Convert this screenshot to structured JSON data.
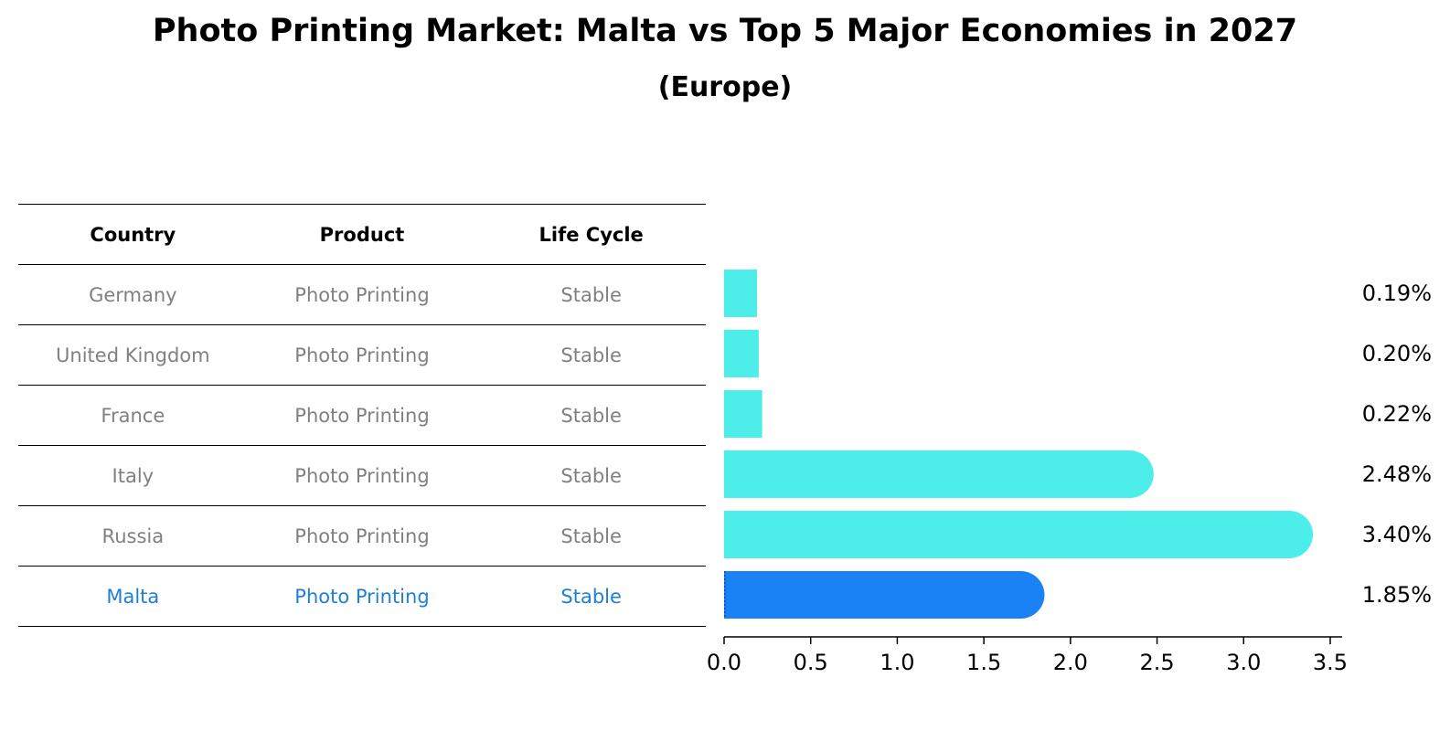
{
  "title": "Photo Printing Market: Malta vs Top 5 Major Economies in 2027",
  "subtitle": "(Europe)",
  "table": {
    "headers": [
      "Country",
      "Product",
      "Life Cycle"
    ],
    "rows": [
      [
        "Germany",
        "Photo Printing",
        "Stable"
      ],
      [
        "United Kingdom",
        "Photo Printing",
        "Stable"
      ],
      [
        "France",
        "Photo Printing",
        "Stable"
      ],
      [
        "Italy",
        "Photo Printing",
        "Stable"
      ],
      [
        "Russia",
        "Photo Printing",
        "Stable"
      ],
      [
        "Malta",
        "Photo Printing",
        "Stable"
      ]
    ]
  },
  "chart_data": {
    "type": "bar",
    "orientation": "horizontal",
    "categories": [
      "Germany",
      "United Kingdom",
      "France",
      "Italy",
      "Russia",
      "Malta"
    ],
    "values": [
      0.19,
      0.2,
      0.22,
      2.48,
      3.4,
      1.85
    ],
    "value_labels": [
      "0.19%",
      "0.20%",
      "0.22%",
      "2.48%",
      "3.40%",
      "1.85%"
    ],
    "xlim": [
      0,
      3.5
    ],
    "x_ticks": [
      0.0,
      0.5,
      1.0,
      1.5,
      2.0,
      2.5,
      3.0,
      3.5
    ],
    "x_tick_labels": [
      "0.0",
      "0.5",
      "1.0",
      "1.5",
      "2.0",
      "2.5",
      "3.0",
      "3.5"
    ],
    "highlight": "Malta",
    "colors": {
      "default": "#4deeea",
      "highlight": "#1a82f5"
    },
    "grid": false
  }
}
